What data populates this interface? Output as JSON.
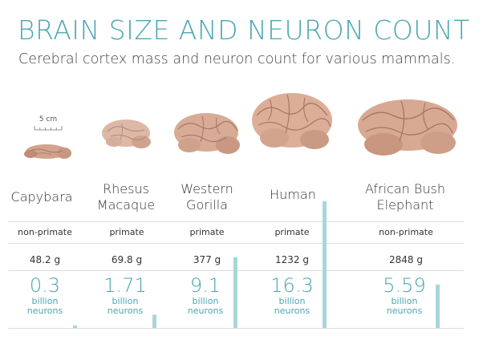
{
  "header": {
    "title": "BRAIN SIZE AND NEURON COUNT",
    "subtitle": "Cerebral cortex mass and neuron count for various mammals."
  },
  "scale": {
    "label": "5 cm"
  },
  "colors": {
    "accent": "#4aa6b2",
    "bar": "#a9d5da",
    "brain": "#d9a58f"
  },
  "chart_data": {
    "type": "bar",
    "categories": [
      "Capybara",
      "Rhesus Macaque",
      "Western Gorilla",
      "Human",
      "African Bush Elephant"
    ],
    "groups": [
      "non-primate",
      "primate",
      "primate",
      "primate",
      "non-primate"
    ],
    "series": [
      {
        "name": "Cerebral cortex mass",
        "unit": "g",
        "values": [
          48.2,
          69.8,
          377,
          1232,
          2848
        ]
      },
      {
        "name": "Neuron count",
        "unit": "billion neurons",
        "values": [
          0.3,
          1.71,
          9.1,
          16.3,
          5.59
        ]
      }
    ]
  },
  "animals": [
    {
      "name_line1": "Capybara",
      "name_line2": "",
      "type": "non-primate",
      "mass": "48.2 g",
      "neurons": "0.3",
      "unit1": "billion",
      "unit2": "neurons"
    },
    {
      "name_line1": "Rhesus",
      "name_line2": "Macaque",
      "type": "primate",
      "mass": "69.8 g",
      "neurons": "1.71",
      "unit1": "billion",
      "unit2": "neurons"
    },
    {
      "name_line1": "Western",
      "name_line2": "Gorilla",
      "type": "primate",
      "mass": "377 g",
      "neurons": "9.1",
      "unit1": "billion",
      "unit2": "neurons"
    },
    {
      "name_line1": "Human",
      "name_line2": "",
      "type": "primate",
      "mass": "1232 g",
      "neurons": "16.3",
      "unit1": "billion",
      "unit2": "neurons"
    },
    {
      "name_line1": "African Bush",
      "name_line2": "Elephant",
      "type": "non-primate",
      "mass": "2848 g",
      "neurons": "5.59",
      "unit1": "billion",
      "unit2": "neurons"
    }
  ]
}
